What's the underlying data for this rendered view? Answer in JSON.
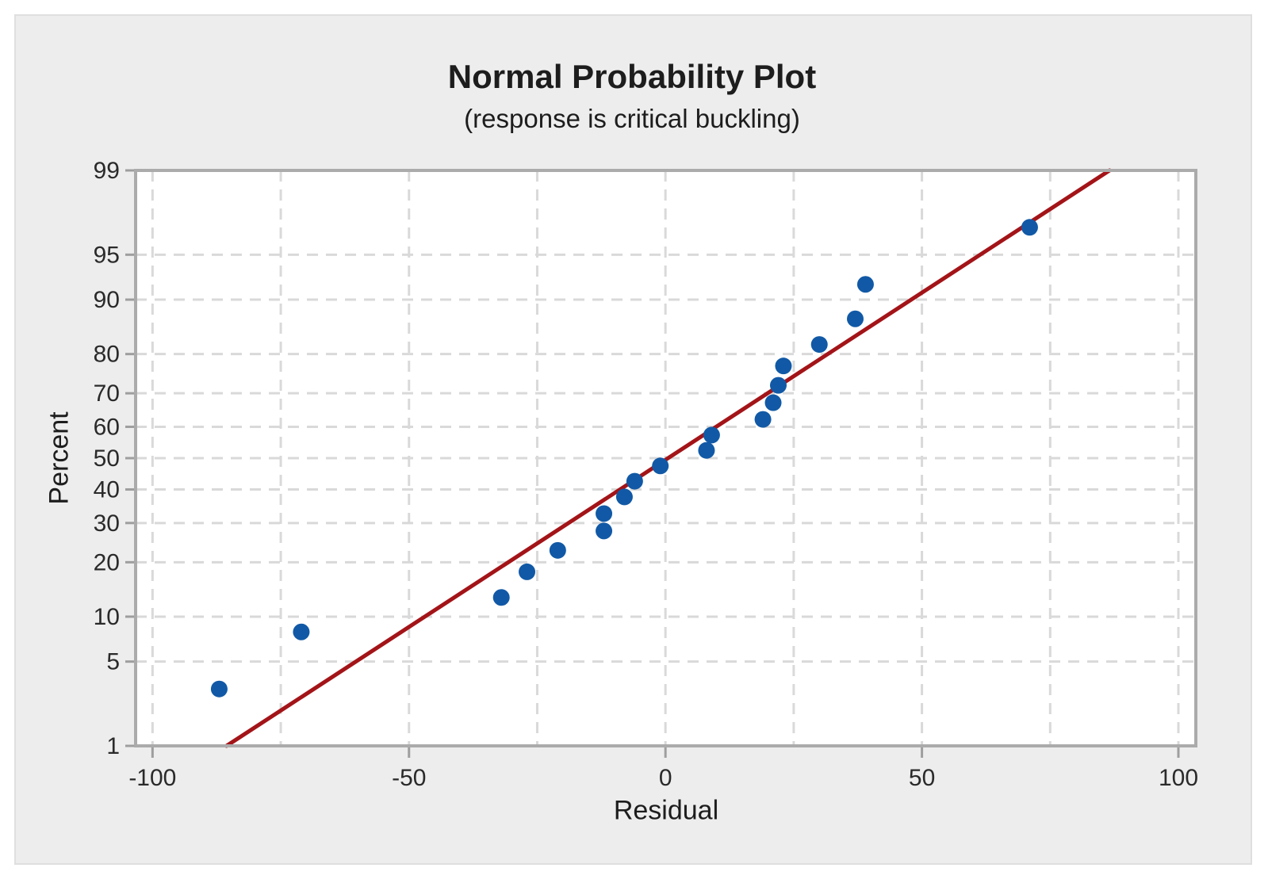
{
  "window": {
    "background": "#FFFFFF",
    "canvas_background": "#EDEDED",
    "canvas_border": "#DFDFDF"
  },
  "chart_data": {
    "type": "scatter",
    "subtype": "normal_probability_plot",
    "title": "Normal Probability Plot",
    "subtitle": "(response is critical buckling)",
    "xlabel": "Residual",
    "ylabel": "Percent",
    "x_ticks": [
      -100,
      -50,
      0,
      50,
      100
    ],
    "x_grid_step": 25,
    "xlim": [
      -103.3,
      103.4
    ],
    "y_scale": "probit",
    "ylim": [
      1,
      99
    ],
    "y_ticks": [
      1,
      5,
      10,
      20,
      30,
      40,
      50,
      60,
      70,
      80,
      90,
      95,
      99
    ],
    "y_grid_ticks": [
      5,
      10,
      20,
      30,
      40,
      50,
      60,
      70,
      80,
      90,
      95
    ],
    "grid": "both-dashed",
    "legend": null,
    "points": [
      {
        "residual": -87,
        "percent": 3.1
      },
      {
        "residual": -71,
        "percent": 8.0
      },
      {
        "residual": -32,
        "percent": 13.0
      },
      {
        "residual": -27,
        "percent": 17.9
      },
      {
        "residual": -21,
        "percent": 22.8
      },
      {
        "residual": -12,
        "percent": 27.8
      },
      {
        "residual": -12,
        "percent": 32.7
      },
      {
        "residual": -8,
        "percent": 37.7
      },
      {
        "residual": -6,
        "percent": 42.6
      },
      {
        "residual": -1,
        "percent": 47.5
      },
      {
        "residual": 8,
        "percent": 52.5
      },
      {
        "residual": 9,
        "percent": 57.4
      },
      {
        "residual": 19,
        "percent": 62.3
      },
      {
        "residual": 21,
        "percent": 67.3
      },
      {
        "residual": 22,
        "percent": 72.2
      },
      {
        "residual": 23,
        "percent": 77.2
      },
      {
        "residual": 30,
        "percent": 82.1
      },
      {
        "residual": 37,
        "percent": 87.0
      },
      {
        "residual": 39,
        "percent": 92.0
      },
      {
        "residual": 71,
        "percent": 96.9
      }
    ],
    "fit_line": {
      "mean": 0.5,
      "sd": 37,
      "from_percent": 1,
      "to_percent": 99
    },
    "colors": {
      "point": "#1159A6",
      "line": "#A31418",
      "grid": "#D9D9D9",
      "frame": "#ABABAB",
      "tick": "#9E9E9E",
      "text": "#1D1D1D",
      "plot_background": "#FFFFFF"
    }
  }
}
